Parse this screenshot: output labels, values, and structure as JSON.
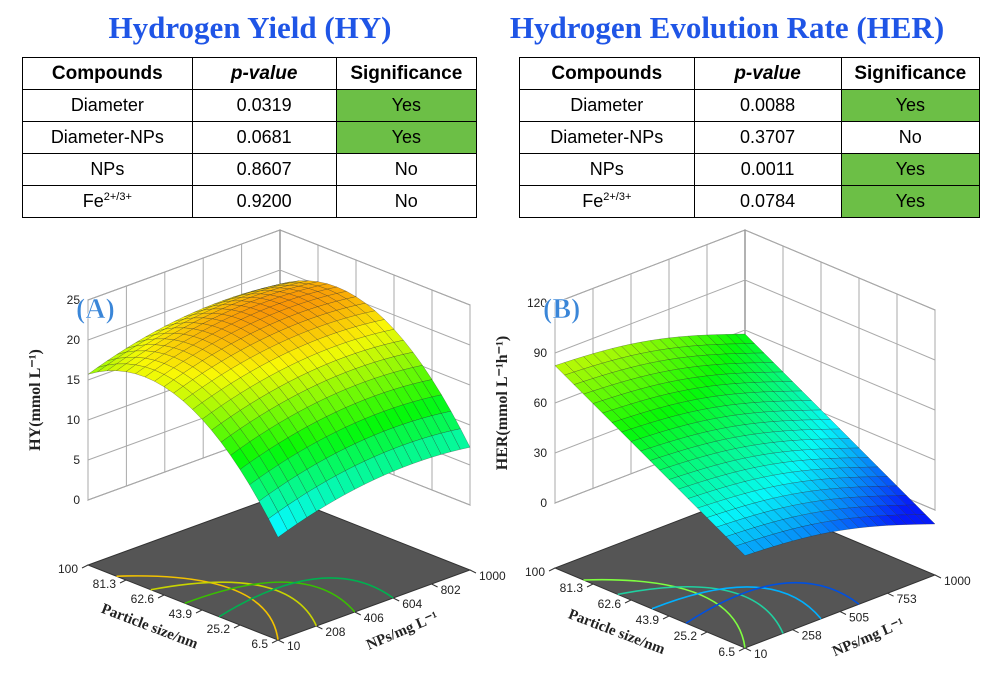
{
  "panels": [
    {
      "title": "Hydrogen Yield (HY)",
      "table": {
        "columns": [
          "Compounds",
          "p-value",
          "Significance"
        ],
        "rows": [
          {
            "compound": "Diameter",
            "p_value": "0.0319",
            "significance": "Yes",
            "highlight": true
          },
          {
            "compound": "Diameter-NPs",
            "p_value": "0.0681",
            "significance": "Yes",
            "highlight": true
          },
          {
            "compound": "NPs",
            "p_value": "0.8607",
            "significance": "No",
            "highlight": false
          },
          {
            "compound": {
              "base": "Fe",
              "sup": "2+/3+"
            },
            "p_value": "0.9200",
            "significance": "No",
            "highlight": false
          }
        ]
      },
      "plot": {
        "label": "(A)",
        "z_axis": "HY(mmol L⁻¹)",
        "z_ticks": [
          0,
          5,
          10,
          15,
          20,
          25
        ],
        "particle_axis": "Particle size/nm",
        "particle_ticks": [
          100,
          81.3,
          62.6,
          43.9,
          25.2,
          6.5
        ],
        "nps_axis": "NPs/mg L⁻¹",
        "nps_ticks": [
          10,
          208,
          406,
          604,
          802,
          1000
        ]
      }
    },
    {
      "title": "Hydrogen Evolution Rate  (HER)",
      "table": {
        "columns": [
          "Compounds",
          "p-value",
          "Significance"
        ],
        "rows": [
          {
            "compound": "Diameter",
            "p_value": "0.0088",
            "significance": "Yes",
            "highlight": true
          },
          {
            "compound": "Diameter-NPs",
            "p_value": "0.3707",
            "significance": "No",
            "highlight": false
          },
          {
            "compound": "NPs",
            "p_value": "0.0011",
            "significance": "Yes",
            "highlight": true
          },
          {
            "compound": {
              "base": "Fe",
              "sup": "2+/3+"
            },
            "p_value": "0.0784",
            "significance": "Yes",
            "highlight": true
          }
        ]
      },
      "plot": {
        "label": "(B)",
        "z_axis": "HER(mmol L⁻¹h⁻¹)",
        "z_ticks": [
          0,
          30,
          60,
          90,
          120
        ],
        "particle_axis": "Particle size/nm",
        "particle_ticks": [
          100,
          81.3,
          62.6,
          43.9,
          25.2,
          6.5
        ],
        "nps_axis": "NPs/mg L⁻¹",
        "nps_ticks": [
          10,
          258,
          505,
          753,
          1000
        ]
      }
    }
  ]
}
